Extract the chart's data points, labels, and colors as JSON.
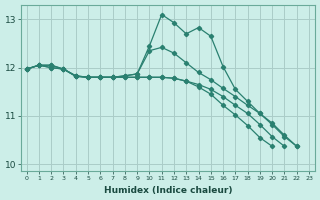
{
  "x": [
    0,
    1,
    2,
    3,
    4,
    5,
    6,
    7,
    8,
    9,
    10,
    11,
    12,
    13,
    14,
    15,
    16,
    17,
    18,
    19,
    20,
    21,
    22,
    23
  ],
  "line1": [
    11.97,
    12.05,
    12.05,
    11.97,
    11.82,
    11.8,
    11.8,
    11.8,
    11.83,
    11.87,
    12.45,
    13.1,
    12.93,
    12.7,
    12.83,
    12.65,
    12.02,
    11.55,
    11.3,
    11.05,
    10.85,
    10.6,
    10.37
  ],
  "line2": [
    11.97,
    12.05,
    12.05,
    11.97,
    11.82,
    11.8,
    11.8,
    11.8,
    11.83,
    11.87,
    12.35,
    12.42,
    12.3,
    12.1,
    11.9,
    11.75,
    11.57,
    11.4,
    11.22,
    11.05,
    10.82,
    10.57,
    10.37
  ],
  "line3": [
    11.97,
    12.05,
    12.0,
    11.97,
    11.83,
    11.8,
    11.8,
    11.8,
    11.8,
    11.8,
    11.8,
    11.8,
    11.78,
    11.72,
    11.65,
    11.55,
    11.4,
    11.22,
    11.05,
    10.82,
    10.57,
    10.37
  ],
  "line4": [
    11.97,
    12.05,
    12.0,
    11.97,
    11.83,
    11.8,
    11.8,
    11.8,
    11.8,
    11.8,
    11.8,
    11.8,
    11.78,
    11.72,
    11.6,
    11.45,
    11.22,
    11.02,
    10.8,
    10.55,
    10.37
  ],
  "line_color": "#2a8070",
  "bg_color": "#cceee8",
  "grid_color": "#aaccc8",
  "xlabel": "Humidex (Indice chaleur)",
  "ylim": [
    9.85,
    13.3
  ],
  "xlim": [
    -0.5,
    23.5
  ],
  "yticks": [
    10,
    11,
    12,
    13
  ],
  "xticks": [
    0,
    1,
    2,
    3,
    4,
    5,
    6,
    7,
    8,
    9,
    10,
    11,
    12,
    13,
    14,
    15,
    16,
    17,
    18,
    19,
    20,
    21,
    22,
    23
  ]
}
